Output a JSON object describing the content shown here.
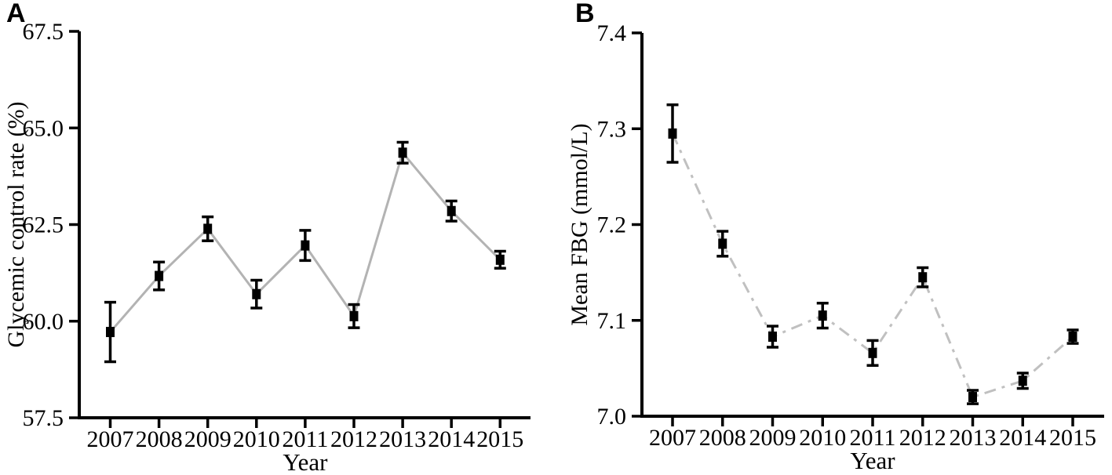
{
  "figure": {
    "background": "#ffffff",
    "text_color": "#000000"
  },
  "chart_data": [
    {
      "panel_label": "A",
      "type": "line",
      "xlabel": "Year",
      "ylabel": "Glycemic control rate (%)",
      "x": [
        "2007",
        "2008",
        "2009",
        "2010",
        "2011",
        "2012",
        "2013",
        "2014",
        "2015"
      ],
      "values": [
        59.72,
        61.17,
        62.39,
        60.7,
        61.96,
        60.13,
        64.36,
        62.85,
        61.59
      ],
      "errors": [
        0.77,
        0.36,
        0.31,
        0.36,
        0.39,
        0.3,
        0.27,
        0.26,
        0.22
      ],
      "ylim": [
        57.5,
        67.5
      ],
      "yticks": [
        57.5,
        60.0,
        62.5,
        65.0,
        67.5
      ],
      "ytick_labels": [
        "57.5",
        "60.0",
        "62.5",
        "65.0",
        "67.5"
      ],
      "grid": false,
      "legend": null,
      "line_style": "solid",
      "line_color": "#b3b3b3",
      "marker": "square",
      "marker_color": "#000000",
      "error_bar_color": "#000000"
    },
    {
      "panel_label": "B",
      "type": "line",
      "xlabel": "Year",
      "ylabel": "Mean FBG (mmol/L)",
      "x": [
        "2007",
        "2008",
        "2009",
        "2010",
        "2011",
        "2012",
        "2013",
        "2014",
        "2015"
      ],
      "values": [
        7.295,
        7.18,
        7.083,
        7.105,
        7.066,
        7.145,
        7.02,
        7.037,
        7.083
      ],
      "errors": [
        0.03,
        0.013,
        0.011,
        0.013,
        0.013,
        0.01,
        0.007,
        0.008,
        0.007
      ],
      "ylim": [
        7.0,
        7.4
      ],
      "yticks": [
        7.0,
        7.1,
        7.2,
        7.3,
        7.4
      ],
      "ytick_labels": [
        "7.0",
        "7.1",
        "7.2",
        "7.3",
        "7.4"
      ],
      "grid": false,
      "legend": null,
      "line_style": "dashdot",
      "line_color": "#c0c0c0",
      "marker": "square",
      "marker_color": "#000000",
      "error_bar_color": "#000000"
    }
  ]
}
